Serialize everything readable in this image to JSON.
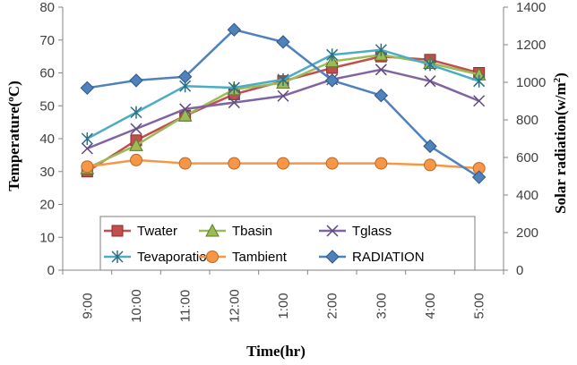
{
  "chart_data": {
    "type": "line",
    "categories": [
      "9:00",
      "10:00",
      "11:00",
      "12:00",
      "1:00",
      "2:00",
      "3:00",
      "4:00",
      "5:00"
    ],
    "xlabel": "Time(hr)",
    "ylabel": "Temperature(oC)",
    "ylabel_parts": {
      "main": "Temperature(",
      "sup": "o",
      "tail": "C)"
    },
    "y2label": "Solar radiation(w/m2)",
    "y2label_parts": {
      "main": "Solar radiation(w/m",
      "sup": "2",
      "tail": ")"
    },
    "ylim": [
      0,
      80
    ],
    "yticks": [
      0,
      10,
      20,
      30,
      40,
      50,
      60,
      70,
      80
    ],
    "y2lim": [
      0,
      1400
    ],
    "y2ticks": [
      0,
      200,
      400,
      600,
      800,
      1000,
      1200,
      1400
    ],
    "legend_position": "bottom-left inside",
    "series": [
      {
        "name": "Twater",
        "axis": "left",
        "color": "#C0504D",
        "marker": "square",
        "fill": "#C0504D",
        "stroke": "#8B2A27",
        "values": [
          30,
          39.5,
          47,
          53.5,
          57.5,
          61.5,
          65,
          64,
          60
        ]
      },
      {
        "name": "Tbasin",
        "axis": "left",
        "color": "#9BBB59",
        "marker": "triangle",
        "fill": "#9BBB59",
        "stroke": "#5E7A2A",
        "values": [
          31,
          38,
          47,
          55,
          57,
          63.5,
          65.5,
          63,
          59.5
        ]
      },
      {
        "name": "Tglass",
        "axis": "left",
        "color": "#8064A2",
        "marker": "x",
        "fill": "none",
        "stroke": "#5F4A7E",
        "values": [
          37,
          43,
          49,
          51,
          53,
          58,
          61,
          57.5,
          51.5
        ]
      },
      {
        "name": "Tevaporation",
        "axis": "left",
        "color": "#4BACC6",
        "marker": "star",
        "fill": "none",
        "stroke": "#2B6F82",
        "values": [
          40,
          48,
          56,
          55.5,
          58,
          65.5,
          67,
          62.5,
          57.5
        ]
      },
      {
        "name": "Tambient",
        "axis": "left",
        "color": "#F79646",
        "marker": "circle",
        "fill": "#F79646",
        "stroke": "#B86A28",
        "values": [
          31.5,
          33.5,
          32.5,
          32.5,
          32.5,
          32.5,
          32.5,
          32,
          31
        ]
      },
      {
        "name": "RADIATION",
        "axis": "right",
        "color": "#4F81BD",
        "marker": "diamond",
        "fill": "#4F81BD",
        "stroke": "#2E5683",
        "values": [
          970,
          1010,
          1030,
          1280,
          1215,
          1010,
          930,
          660,
          495
        ]
      }
    ]
  }
}
